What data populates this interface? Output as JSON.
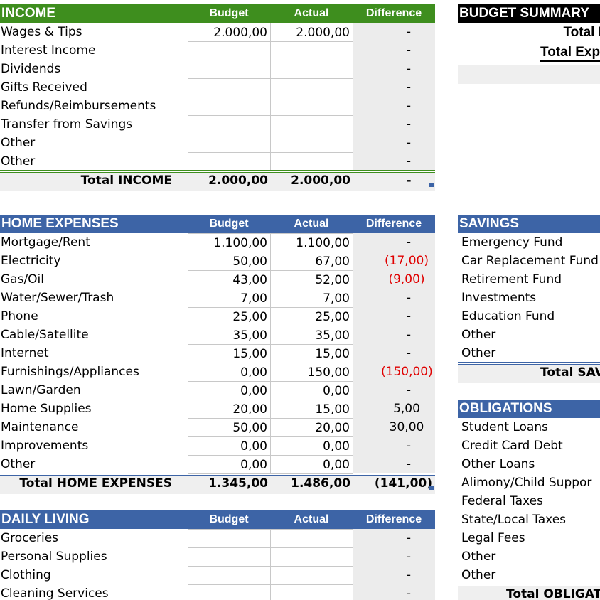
{
  "income": {
    "title": "INCOME",
    "columns": [
      "Budget",
      "Actual",
      "Difference"
    ],
    "rows": [
      {
        "label": "Wages & Tips",
        "budget": "2.000,00",
        "actual": "2.000,00",
        "difference": "-"
      },
      {
        "label": "Interest Income",
        "difference": "-"
      },
      {
        "label": "Dividends",
        "difference": "-"
      },
      {
        "label": "Gifts Received",
        "difference": "-"
      },
      {
        "label": "Refunds/Reimbursements",
        "difference": "-"
      },
      {
        "label": "Transfer from Savings",
        "difference": "-"
      },
      {
        "label": "Other",
        "difference": "-"
      },
      {
        "label": "Other",
        "difference": "-"
      }
    ],
    "total": {
      "label": "Total INCOME",
      "budget": "2.000,00",
      "actual": "2.000,00",
      "difference": "-"
    }
  },
  "home_expenses": {
    "title": "HOME EXPENSES",
    "columns": [
      "Budget",
      "Actual",
      "Difference"
    ],
    "rows": [
      {
        "label": "Mortgage/Rent",
        "budget": "1.100,00",
        "actual": "1.100,00",
        "difference": "-"
      },
      {
        "label": "Electricity",
        "budget": "50,00",
        "actual": "67,00",
        "difference": "(17,00)"
      },
      {
        "label": "Gas/Oil",
        "budget": "43,00",
        "actual": "52,00",
        "difference": "(9,00)"
      },
      {
        "label": "Water/Sewer/Trash",
        "budget": "7,00",
        "actual": "7,00",
        "difference": "-"
      },
      {
        "label": "Phone",
        "budget": "25,00",
        "actual": "25,00",
        "difference": "-"
      },
      {
        "label": "Cable/Satellite",
        "budget": "35,00",
        "actual": "35,00",
        "difference": "-"
      },
      {
        "label": "Internet",
        "budget": "15,00",
        "actual": "15,00",
        "difference": "-"
      },
      {
        "label": "Furnishings/Appliances",
        "budget": "0,00",
        "actual": "150,00",
        "difference": "(150,00)"
      },
      {
        "label": "Lawn/Garden",
        "budget": "0,00",
        "actual": "0,00",
        "difference": "-"
      },
      {
        "label": "Home Supplies",
        "budget": "20,00",
        "actual": "15,00",
        "difference": "5,00"
      },
      {
        "label": "Maintenance",
        "budget": "50,00",
        "actual": "20,00",
        "difference": "30,00"
      },
      {
        "label": "Improvements",
        "budget": "0,00",
        "actual": "0,00",
        "difference": "-"
      },
      {
        "label": "Other",
        "budget": "0,00",
        "actual": "0,00",
        "difference": "-"
      }
    ],
    "total": {
      "label": "Total HOME EXPENSES",
      "budget": "1.345,00",
      "actual": "1.486,00",
      "difference": "(141,00)"
    }
  },
  "daily_living": {
    "title": "DAILY LIVING",
    "columns": [
      "Budget",
      "Actual",
      "Difference"
    ],
    "rows": [
      {
        "label": "Groceries",
        "difference": "-"
      },
      {
        "label": "Personal Supplies",
        "difference": "-"
      },
      {
        "label": "Clothing",
        "difference": "-"
      },
      {
        "label": "Cleaning Services",
        "difference": "-"
      }
    ]
  },
  "budget_summary": {
    "title": "BUDGET SUMMARY",
    "lines": [
      "Total I",
      "Total Exp"
    ]
  },
  "savings": {
    "title": "SAVINGS",
    "rows": [
      "Emergency Fund",
      "Car Replacement Fund",
      "Retirement Fund",
      "Investments",
      "Education Fund",
      "Other",
      "Other"
    ],
    "total": "Total SAV"
  },
  "obligations": {
    "title": "OBLIGATIONS",
    "rows": [
      "Student Loans",
      "Credit Card Debt",
      "Other Loans",
      "Alimony/Child Suppor",
      "Federal Taxes",
      "State/Local Taxes",
      "Legal Fees",
      "Other",
      "Other"
    ],
    "total": "Total OBLIGAT"
  }
}
